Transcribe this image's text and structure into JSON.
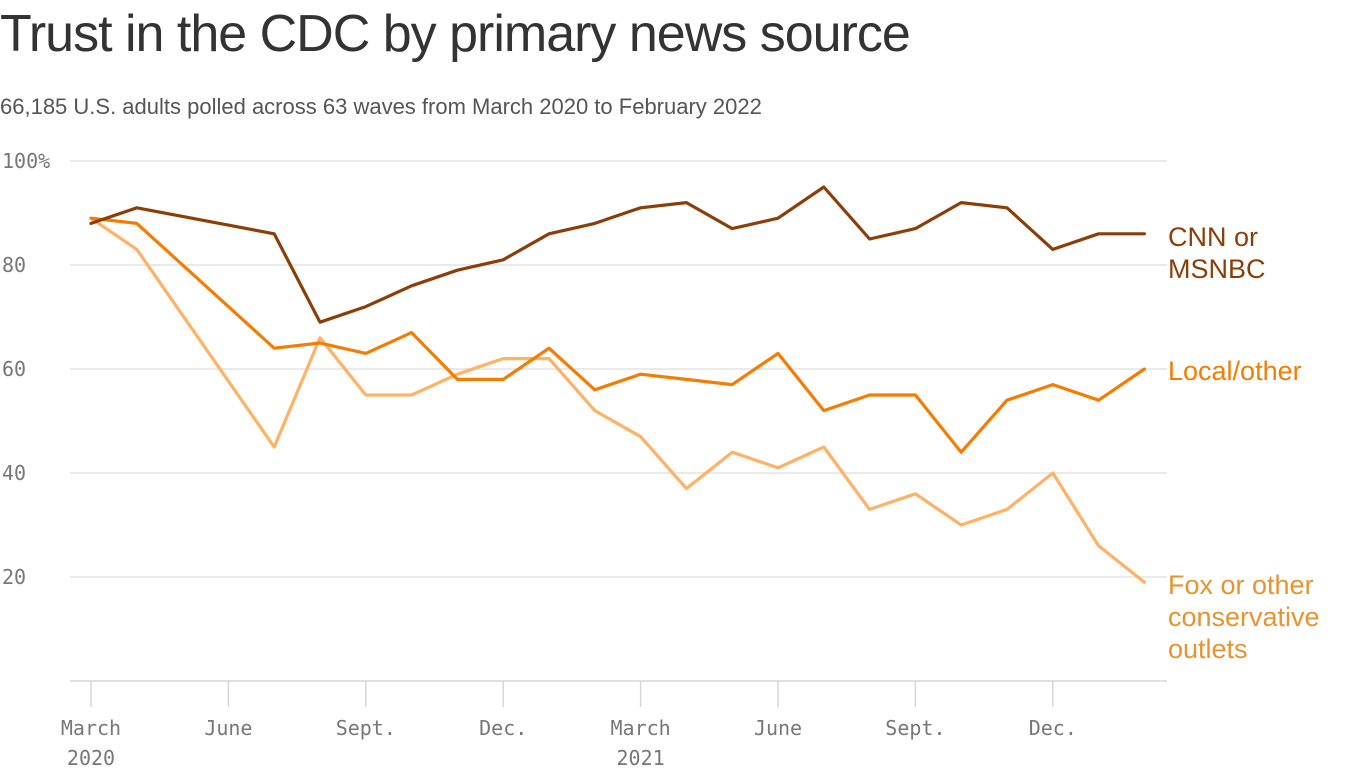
{
  "header": {
    "title": "Trust in the CDC by primary news source",
    "subtitle": "66,185 U.S. adults polled across 63 waves from March 2020 to February 2022"
  },
  "chart_data": {
    "type": "line",
    "title": "Trust in the CDC by primary news source",
    "subtitle": "66,185 U.S. adults polled across 63 waves from March 2020 to February 2022",
    "xlabel": "",
    "ylabel": "",
    "ylim": [
      0,
      100
    ],
    "y_ticks": [
      {
        "value": 100,
        "label": "100%"
      },
      {
        "value": 80,
        "label": "80"
      },
      {
        "value": 60,
        "label": "60"
      },
      {
        "value": 40,
        "label": "40"
      },
      {
        "value": 20,
        "label": "20"
      }
    ],
    "x_range": [
      0,
      23.3
    ],
    "x_ticks": [
      {
        "value": 0,
        "line1": "March",
        "line2": "2020"
      },
      {
        "value": 3,
        "line1": "June",
        "line2": ""
      },
      {
        "value": 6,
        "line1": "Sept.",
        "line2": ""
      },
      {
        "value": 9,
        "line1": "Dec.",
        "line2": ""
      },
      {
        "value": 12,
        "line1": "March",
        "line2": "2021"
      },
      {
        "value": 15,
        "line1": "June",
        "line2": ""
      },
      {
        "value": 18,
        "line1": "Sept.",
        "line2": ""
      },
      {
        "value": 21,
        "line1": "Dec.",
        "line2": ""
      }
    ],
    "grid": true,
    "series": [
      {
        "name": "CNN or MSNBC",
        "label_lines": [
          "CNN or",
          "MSNBC"
        ],
        "color": "#8B3E08",
        "x": [
          0,
          1,
          4,
          5,
          6,
          7,
          8,
          9,
          10,
          11,
          12,
          13,
          14,
          15,
          16,
          17,
          18,
          19,
          20,
          21,
          22,
          23
        ],
        "values": [
          88,
          91,
          86,
          69,
          72,
          76,
          79,
          81,
          86,
          88,
          91,
          92,
          87,
          89,
          95,
          85,
          87,
          92,
          91,
          83,
          86,
          86
        ]
      },
      {
        "name": "Local/other",
        "label_lines": [
          "Local/other"
        ],
        "color": "#F57C00",
        "x": [
          0,
          1,
          4,
          5,
          6,
          7,
          8,
          9,
          10,
          11,
          12,
          13,
          14,
          15,
          16,
          17,
          18,
          19,
          20,
          21,
          22,
          23
        ],
        "values": [
          89,
          88,
          64,
          65,
          63,
          67,
          58,
          58,
          64,
          56,
          59,
          58,
          57,
          63,
          52,
          55,
          55,
          44,
          54,
          57,
          54,
          60
        ]
      },
      {
        "name": "Fox or other conservative outlets",
        "label_lines": [
          "Fox or other",
          "conservative",
          "outlets"
        ],
        "color": "#FFB266",
        "label_color": "#E8932F",
        "x": [
          0,
          1,
          4,
          5,
          6,
          7,
          8,
          9,
          10,
          11,
          12,
          13,
          14,
          15,
          16,
          17,
          18,
          19,
          20,
          21,
          22,
          23
        ],
        "values": [
          89,
          83,
          45,
          66,
          55,
          55,
          59,
          62,
          62,
          52,
          47,
          37,
          44,
          41,
          45,
          33,
          36,
          30,
          33,
          40,
          26,
          19
        ]
      }
    ]
  }
}
